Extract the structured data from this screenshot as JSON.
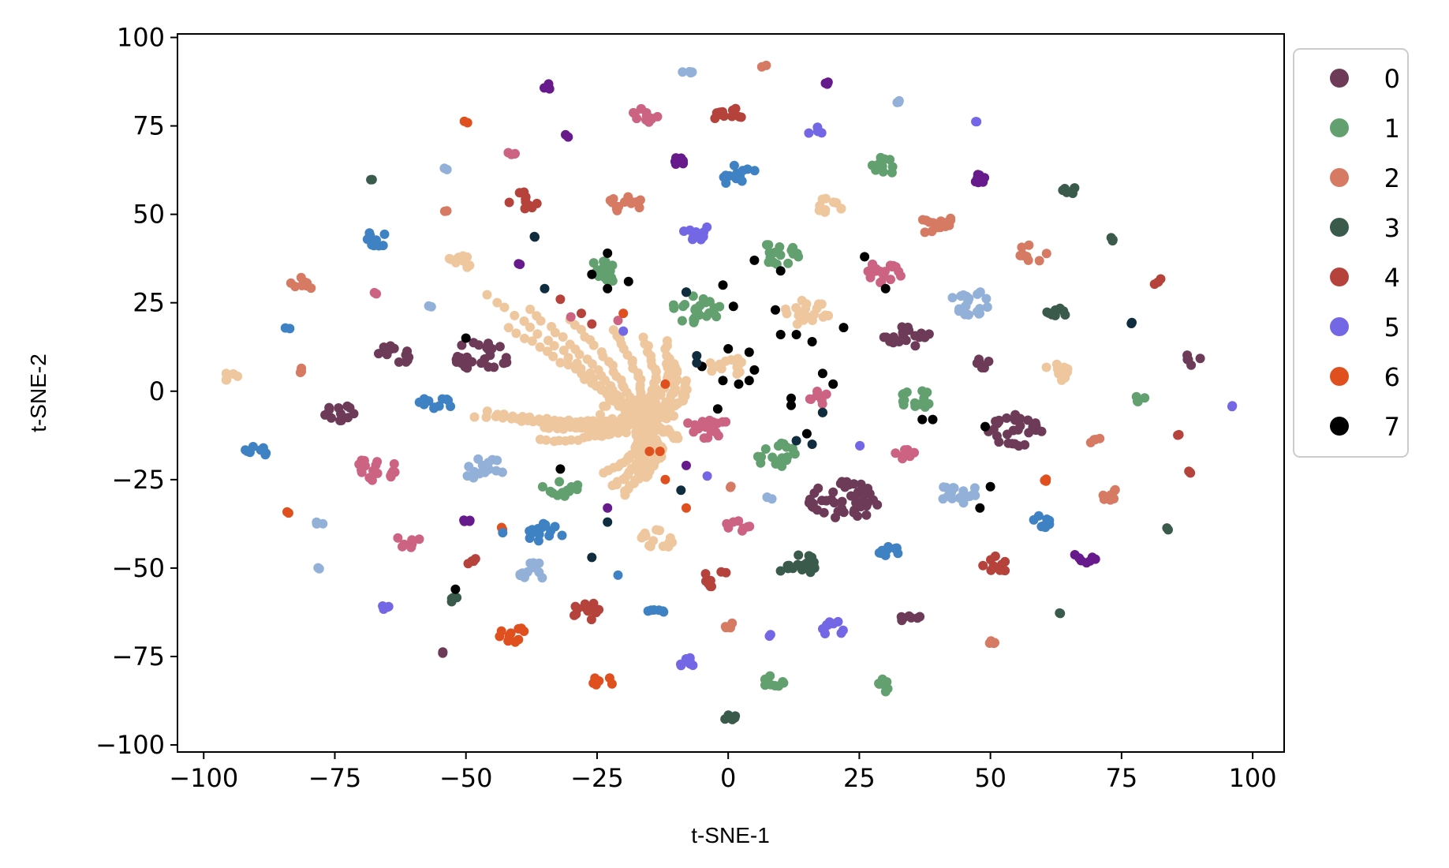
{
  "chart_data": {
    "type": "scatter",
    "xlabel": "t-SNE-1",
    "ylabel": "t-SNE-2",
    "xlim": [
      -105,
      106
    ],
    "ylim": [
      -102,
      101
    ],
    "xticks": [
      -100,
      -75,
      -50,
      -25,
      0,
      25,
      50,
      75,
      100
    ],
    "yticks": [
      -100,
      -75,
      -50,
      -25,
      0,
      25,
      50,
      75,
      100
    ],
    "legend": {
      "placement": "outside-right-top",
      "entries": [
        {
          "label": "0",
          "color": "#6d3a58"
        },
        {
          "label": "1",
          "color": "#62a06f"
        },
        {
          "label": "2",
          "color": "#d67a63"
        },
        {
          "label": "3",
          "color": "#3a5a4b"
        },
        {
          "label": "4",
          "color": "#b5423b"
        },
        {
          "label": "5",
          "color": "#7467e6"
        },
        {
          "label": "6",
          "color": "#e0501f"
        },
        {
          "label": "7",
          "color": "#000000"
        }
      ]
    },
    "extra_colors": {
      "peach": "#efc79e",
      "blue": "#3f82c4",
      "lightblue": "#93b1d8",
      "pink": "#cc6382",
      "purple": "#661a8c",
      "navy": "#0f2d3e"
    },
    "clusters": [
      {
        "c": "lightblue",
        "x": -8,
        "y": 90,
        "n": 4,
        "r": 1
      },
      {
        "c": "2",
        "x": 7,
        "y": 92,
        "n": 2,
        "r": 0.6
      },
      {
        "c": "purple",
        "x": -34,
        "y": 86,
        "n": 4,
        "r": 1
      },
      {
        "c": "purple",
        "x": 19,
        "y": 87,
        "n": 3,
        "r": 0.8
      },
      {
        "c": "6",
        "x": -50,
        "y": 76,
        "n": 2,
        "r": 0.5
      },
      {
        "c": "pink",
        "x": -16,
        "y": 78,
        "n": 12,
        "r": 2.2
      },
      {
        "c": "4",
        "x": 0,
        "y": 78,
        "n": 12,
        "r": 2.4
      },
      {
        "c": "5",
        "x": 16,
        "y": 74,
        "n": 5,
        "r": 2
      },
      {
        "c": "5",
        "x": 47,
        "y": 76,
        "n": 2,
        "r": 0.5
      },
      {
        "c": "lightblue",
        "x": 32,
        "y": 82,
        "n": 3,
        "r": 0.7
      },
      {
        "c": "purple",
        "x": -31,
        "y": 72,
        "n": 2,
        "r": 0.5
      },
      {
        "c": "pink",
        "x": -41,
        "y": 67,
        "n": 4,
        "r": 1
      },
      {
        "c": "purple",
        "x": -10,
        "y": 65,
        "n": 7,
        "r": 1.5
      },
      {
        "c": "blue",
        "x": 2,
        "y": 61,
        "n": 14,
        "r": 3
      },
      {
        "c": "1",
        "x": 30,
        "y": 64,
        "n": 10,
        "r": 2.5
      },
      {
        "c": "lightblue",
        "x": -54,
        "y": 63,
        "n": 2,
        "r": 0.5
      },
      {
        "c": "3",
        "x": -68,
        "y": 60,
        "n": 2,
        "r": 0.5
      },
      {
        "c": "purple",
        "x": 47,
        "y": 60,
        "n": 7,
        "r": 1.8
      },
      {
        "c": "3",
        "x": 64,
        "y": 57,
        "n": 7,
        "r": 2
      },
      {
        "c": "2",
        "x": -20,
        "y": 53,
        "n": 14,
        "r": 3
      },
      {
        "c": "4",
        "x": -39,
        "y": 54,
        "n": 10,
        "r": 2.5
      },
      {
        "c": "2",
        "x": -54,
        "y": 51,
        "n": 2,
        "r": 0.5
      },
      {
        "c": "peach",
        "x": 19,
        "y": 52,
        "n": 11,
        "r": 2.5
      },
      {
        "c": "2",
        "x": 40,
        "y": 47,
        "n": 14,
        "r": 3
      },
      {
        "c": "5",
        "x": -6,
        "y": 45,
        "n": 12,
        "r": 2.7
      },
      {
        "c": "blue",
        "x": -67,
        "y": 43,
        "n": 10,
        "r": 2.2
      },
      {
        "c": "navy",
        "x": -37,
        "y": 44,
        "n": 2,
        "r": 0.5
      },
      {
        "c": "3",
        "x": 73,
        "y": 43,
        "n": 3,
        "r": 0.8
      },
      {
        "c": "1",
        "x": 10,
        "y": 39,
        "n": 18,
        "r": 3.5
      },
      {
        "c": "2",
        "x": 58,
        "y": 39,
        "n": 10,
        "r": 2.5
      },
      {
        "c": "1",
        "x": -23,
        "y": 34,
        "n": 16,
        "r": 3.3
      },
      {
        "c": "peach",
        "x": -51,
        "y": 36,
        "n": 12,
        "r": 2.5
      },
      {
        "c": "purple",
        "x": -40,
        "y": 36,
        "n": 2,
        "r": 0.5
      },
      {
        "c": "pink",
        "x": 29,
        "y": 33,
        "n": 18,
        "r": 3.5
      },
      {
        "c": "2",
        "x": -81,
        "y": 30,
        "n": 8,
        "r": 2.2
      },
      {
        "c": "4",
        "x": 82,
        "y": 31,
        "n": 4,
        "r": 1
      },
      {
        "c": "lightblue",
        "x": 46,
        "y": 25,
        "n": 20,
        "r": 3.5
      },
      {
        "c": "3",
        "x": 62,
        "y": 22,
        "n": 8,
        "r": 2
      },
      {
        "c": "1",
        "x": -6,
        "y": 23,
        "n": 24,
        "r": 4
      },
      {
        "c": "peach",
        "x": 15,
        "y": 22,
        "n": 20,
        "r": 3.8
      },
      {
        "c": "pink",
        "x": -67,
        "y": 28,
        "n": 2,
        "r": 0.5
      },
      {
        "c": "lightblue",
        "x": -57,
        "y": 24,
        "n": 2,
        "r": 0.5
      },
      {
        "c": "navy",
        "x": 77,
        "y": 19,
        "n": 2,
        "r": 0.5
      },
      {
        "c": "blue",
        "x": -84,
        "y": 18,
        "n": 2,
        "r": 0.5
      },
      {
        "c": "0",
        "x": 34,
        "y": 15,
        "n": 20,
        "r": 3.8
      },
      {
        "c": "0",
        "x": -47,
        "y": 10,
        "n": 28,
        "r": 4.5
      },
      {
        "c": "0",
        "x": -64,
        "y": 10,
        "n": 14,
        "r": 3
      },
      {
        "c": "0",
        "x": 88,
        "y": 9,
        "n": 5,
        "r": 1.8
      },
      {
        "c": "0",
        "x": 49,
        "y": 8,
        "n": 7,
        "r": 2
      },
      {
        "c": "peach",
        "x": 0,
        "y": 7,
        "n": 14,
        "r": 3
      },
      {
        "c": "peach",
        "x": 62,
        "y": 5,
        "n": 12,
        "r": 2.8
      },
      {
        "c": "peach",
        "x": -95,
        "y": 4,
        "n": 5,
        "r": 1.5
      },
      {
        "c": "2",
        "x": -82,
        "y": 6,
        "n": 3,
        "r": 0.8
      },
      {
        "c": "1",
        "x": 36,
        "y": -2,
        "n": 14,
        "r": 3
      },
      {
        "c": "1",
        "x": 78,
        "y": -2,
        "n": 4,
        "r": 1.5
      },
      {
        "c": "pink",
        "x": 17,
        "y": -2,
        "n": 10,
        "r": 2.5
      },
      {
        "c": "5",
        "x": 96,
        "y": -4,
        "n": 2,
        "r": 0.5
      },
      {
        "c": "blue",
        "x": -56,
        "y": -4,
        "n": 12,
        "r": 2.8
      },
      {
        "c": "0",
        "x": -74,
        "y": -6,
        "n": 12,
        "r": 2.5
      },
      {
        "c": "0",
        "x": 55,
        "y": -11,
        "n": 30,
        "r": 4.5
      },
      {
        "c": "pink",
        "x": -4,
        "y": -10,
        "n": 18,
        "r": 3.3
      },
      {
        "c": "2",
        "x": 70,
        "y": -14,
        "n": 4,
        "r": 1
      },
      {
        "c": "4",
        "x": 86,
        "y": -12,
        "n": 2,
        "r": 0.5
      },
      {
        "c": "blue",
        "x": -90,
        "y": -17,
        "n": 8,
        "r": 1.8
      },
      {
        "c": "1",
        "x": 9,
        "y": -18,
        "n": 20,
        "r": 3.5
      },
      {
        "c": "pink",
        "x": 34,
        "y": -18,
        "n": 8,
        "r": 2
      },
      {
        "c": "5",
        "x": 25,
        "y": -15,
        "n": 2,
        "r": 0.5
      },
      {
        "c": "lightblue",
        "x": -47,
        "y": -22,
        "n": 18,
        "r": 3.5
      },
      {
        "c": "pink",
        "x": -67,
        "y": -22,
        "n": 18,
        "r": 3.5
      },
      {
        "c": "4",
        "x": 88,
        "y": -23,
        "n": 3,
        "r": 0.8
      },
      {
        "c": "0",
        "x": 22,
        "y": -31,
        "n": 50,
        "r": 5.5
      },
      {
        "c": "1",
        "x": -32,
        "y": -27,
        "n": 14,
        "r": 3
      },
      {
        "c": "lightblue",
        "x": 44,
        "y": -29,
        "n": 20,
        "r": 3.5
      },
      {
        "c": "2",
        "x": 72,
        "y": -29,
        "n": 7,
        "r": 2
      },
      {
        "c": "6",
        "x": 61,
        "y": -25,
        "n": 3,
        "r": 0.8
      },
      {
        "c": "2",
        "x": 0,
        "y": -27,
        "n": 2,
        "r": 0.5
      },
      {
        "c": "lightblue",
        "x": 8,
        "y": -30,
        "n": 3,
        "r": 0.8
      },
      {
        "c": "6",
        "x": -84,
        "y": -34,
        "n": 2,
        "r": 0.5
      },
      {
        "c": "lightblue",
        "x": -78,
        "y": -37,
        "n": 3,
        "r": 0.8
      },
      {
        "c": "purple",
        "x": -50,
        "y": -37,
        "n": 4,
        "r": 1
      },
      {
        "c": "pink",
        "x": 2,
        "y": -38,
        "n": 8,
        "r": 2
      },
      {
        "c": "blue",
        "x": 59,
        "y": -37,
        "n": 8,
        "r": 2
      },
      {
        "c": "blue",
        "x": -35,
        "y": -40,
        "n": 14,
        "r": 3
      },
      {
        "c": "peach",
        "x": -14,
        "y": -42,
        "n": 14,
        "r": 3
      },
      {
        "c": "pink",
        "x": -61,
        "y": -42,
        "n": 10,
        "r": 2.5
      },
      {
        "c": "6",
        "x": -43,
        "y": -39,
        "n": 2,
        "r": 0.5
      },
      {
        "c": "3",
        "x": 84,
        "y": -39,
        "n": 2,
        "r": 0.5
      },
      {
        "c": "blue",
        "x": 31,
        "y": -46,
        "n": 10,
        "r": 2.2
      },
      {
        "c": "3",
        "x": 13,
        "y": -49,
        "n": 18,
        "r": 3.3
      },
      {
        "c": "purple",
        "x": 68,
        "y": -47,
        "n": 7,
        "r": 1.8
      },
      {
        "c": "4",
        "x": -49,
        "y": -48,
        "n": 4,
        "r": 1
      },
      {
        "c": "lightblue",
        "x": -37,
        "y": -51,
        "n": 12,
        "r": 2.5
      },
      {
        "c": "4",
        "x": 51,
        "y": -49,
        "n": 10,
        "r": 2.5
      },
      {
        "c": "lightblue",
        "x": -78,
        "y": -50,
        "n": 2,
        "r": 0.5
      },
      {
        "c": "4",
        "x": -2,
        "y": -53,
        "n": 10,
        "r": 2.5
      },
      {
        "c": "3",
        "x": -52,
        "y": -59,
        "n": 4,
        "r": 1
      },
      {
        "c": "4",
        "x": -27,
        "y": -62,
        "n": 14,
        "r": 3
      },
      {
        "c": "5",
        "x": -65,
        "y": -61,
        "n": 4,
        "r": 1
      },
      {
        "c": "blue",
        "x": -14,
        "y": -63,
        "n": 6,
        "r": 1.8
      },
      {
        "c": "0",
        "x": 35,
        "y": -64,
        "n": 7,
        "r": 1.8
      },
      {
        "c": "3",
        "x": 63,
        "y": -63,
        "n": 2,
        "r": 0.5
      },
      {
        "c": "2",
        "x": 0,
        "y": -66,
        "n": 4,
        "r": 1
      },
      {
        "c": "5",
        "x": 20,
        "y": -67,
        "n": 10,
        "r": 2
      },
      {
        "c": "6",
        "x": -41,
        "y": -69,
        "n": 12,
        "r": 2.5
      },
      {
        "c": "2",
        "x": 50,
        "y": -71,
        "n": 4,
        "r": 1
      },
      {
        "c": "5",
        "x": 8,
        "y": -69,
        "n": 2,
        "r": 0.5
      },
      {
        "c": "0",
        "x": -54,
        "y": -74,
        "n": 2,
        "r": 0.5
      },
      {
        "c": "5",
        "x": -7,
        "y": -77,
        "n": 8,
        "r": 1.8
      },
      {
        "c": "1",
        "x": 9,
        "y": -82,
        "n": 10,
        "r": 2
      },
      {
        "c": "1",
        "x": 30,
        "y": -83,
        "n": 8,
        "r": 2
      },
      {
        "c": "6",
        "x": -24,
        "y": -82,
        "n": 6,
        "r": 1.8
      },
      {
        "c": "3",
        "x": 0,
        "y": -92,
        "n": 6,
        "r": 1.2
      }
    ],
    "singles": [
      {
        "c": "7",
        "x": -23,
        "y": 39
      },
      {
        "c": "7",
        "x": -26,
        "y": 33
      },
      {
        "c": "7",
        "x": -23,
        "y": 29
      },
      {
        "c": "7",
        "x": -19,
        "y": 31
      },
      {
        "c": "7",
        "x": 5,
        "y": 37
      },
      {
        "c": "7",
        "x": 10,
        "y": 34
      },
      {
        "c": "7",
        "x": -1,
        "y": 30
      },
      {
        "c": "7",
        "x": 1,
        "y": 24
      },
      {
        "c": "7",
        "x": 9,
        "y": 23
      },
      {
        "c": "7",
        "x": -8,
        "y": 28
      },
      {
        "c": "7",
        "x": 26,
        "y": 38
      },
      {
        "c": "7",
        "x": 30,
        "y": 29
      },
      {
        "c": "7",
        "x": 22,
        "y": 18
      },
      {
        "c": "7",
        "x": -50,
        "y": 15
      },
      {
        "c": "7",
        "x": -5,
        "y": 7
      },
      {
        "c": "7",
        "x": 0,
        "y": 12
      },
      {
        "c": "7",
        "x": 4,
        "y": 11
      },
      {
        "c": "7",
        "x": 5,
        "y": 6
      },
      {
        "c": "7",
        "x": 4,
        "y": 3
      },
      {
        "c": "7",
        "x": 2,
        "y": 2
      },
      {
        "c": "7",
        "x": -1,
        "y": 3
      },
      {
        "c": "7",
        "x": 10,
        "y": 16
      },
      {
        "c": "7",
        "x": 13,
        "y": 16
      },
      {
        "c": "7",
        "x": 16,
        "y": 14
      },
      {
        "c": "7",
        "x": 18,
        "y": 5
      },
      {
        "c": "7",
        "x": 20,
        "y": 2
      },
      {
        "c": "7",
        "x": 12,
        "y": -2
      },
      {
        "c": "7",
        "x": 12,
        "y": -4
      },
      {
        "c": "7",
        "x": 18,
        "y": -6
      },
      {
        "c": "7",
        "x": 15,
        "y": -12
      },
      {
        "c": "7",
        "x": -2,
        "y": -5
      },
      {
        "c": "7",
        "x": 37,
        "y": -8
      },
      {
        "c": "7",
        "x": 39,
        "y": -8
      },
      {
        "c": "7",
        "x": 49,
        "y": -10
      },
      {
        "c": "7",
        "x": -32,
        "y": -22
      },
      {
        "c": "7",
        "x": 50,
        "y": -27
      },
      {
        "c": "7",
        "x": 48,
        "y": -33
      },
      {
        "c": "7",
        "x": -52,
        "y": -56
      },
      {
        "c": "navy",
        "x": -35,
        "y": 29
      },
      {
        "c": "navy",
        "x": -8,
        "y": 28
      },
      {
        "c": "navy",
        "x": -6,
        "y": 10
      },
      {
        "c": "navy",
        "x": -6,
        "y": 8
      },
      {
        "c": "navy",
        "x": 18,
        "y": -6
      },
      {
        "c": "navy",
        "x": 13,
        "y": -14
      },
      {
        "c": "navy",
        "x": -9,
        "y": -28
      },
      {
        "c": "navy",
        "x": -23,
        "y": -37
      },
      {
        "c": "navy",
        "x": -26,
        "y": -47
      },
      {
        "c": "navy",
        "x": 16,
        "y": -15
      },
      {
        "c": "4",
        "x": -32,
        "y": 26
      },
      {
        "c": "4",
        "x": -28,
        "y": 22
      },
      {
        "c": "4",
        "x": -26,
        "y": 19
      },
      {
        "c": "pink",
        "x": -30,
        "y": 21
      },
      {
        "c": "pink",
        "x": -21,
        "y": 20
      },
      {
        "c": "6",
        "x": -20,
        "y": 22
      },
      {
        "c": "6",
        "x": -12,
        "y": 2
      },
      {
        "c": "6",
        "x": -15,
        "y": -17
      },
      {
        "c": "6",
        "x": -13,
        "y": -17
      },
      {
        "c": "6",
        "x": -12,
        "y": -25
      },
      {
        "c": "6",
        "x": -8,
        "y": -33
      },
      {
        "c": "purple",
        "x": -8,
        "y": -21
      },
      {
        "c": "purple",
        "x": -23,
        "y": -33
      },
      {
        "c": "5",
        "x": -20,
        "y": 17
      },
      {
        "c": "5",
        "x": -4,
        "y": -24
      },
      {
        "c": "blue",
        "x": -21,
        "y": -52
      },
      {
        "c": "blue",
        "x": -43,
        "y": -40
      }
    ],
    "spiral": {
      "c": "peach",
      "cx": -18,
      "cy": -8,
      "arms": [
        {
          "x": -46,
          "y": 27
        },
        {
          "x": -38,
          "y": 23
        },
        {
          "x": -42,
          "y": 18
        },
        {
          "x": -30,
          "y": 20
        },
        {
          "x": -22,
          "y": 17
        },
        {
          "x": -16,
          "y": 15
        },
        {
          "x": -12,
          "y": 14
        },
        {
          "x": -10,
          "y": 8
        },
        {
          "x": -8,
          "y": 3
        },
        {
          "x": -12,
          "y": -3
        },
        {
          "x": -10,
          "y": -13
        },
        {
          "x": -14,
          "y": -20
        },
        {
          "x": -16,
          "y": -24
        },
        {
          "x": -20,
          "y": -29
        },
        {
          "x": -24,
          "y": -23
        },
        {
          "x": -46,
          "y": -6
        },
        {
          "x": -35,
          "y": -10
        },
        {
          "x": -40,
          "y": -8
        },
        {
          "x": -48,
          "y": -7
        },
        {
          "x": -36,
          "y": -14
        },
        {
          "x": -22,
          "y": -27
        }
      ]
    }
  }
}
